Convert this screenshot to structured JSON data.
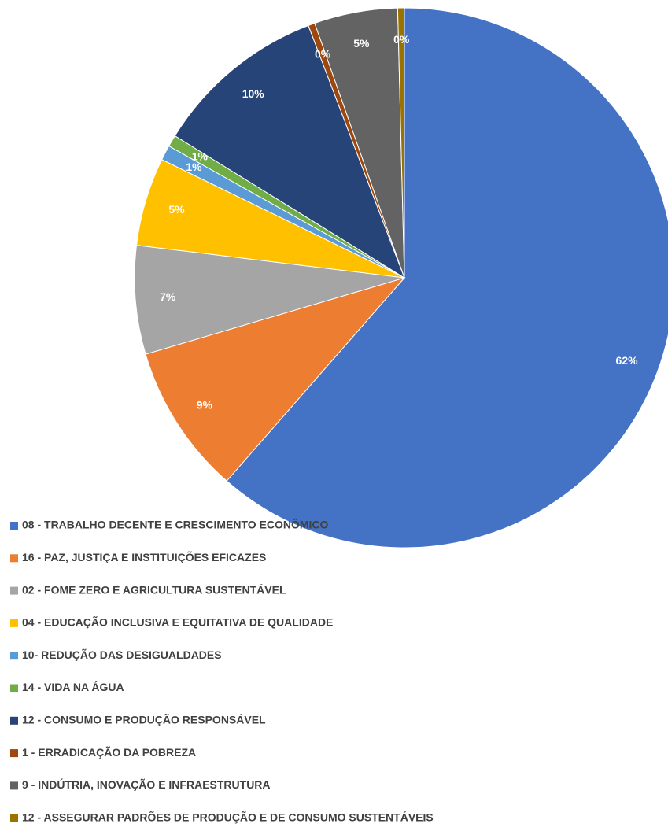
{
  "chart_data": {
    "type": "pie",
    "categories": [
      "08 - TRABALHO DECENTE E CRESCIMENTO ECONÔMICO",
      "16 - PAZ, JUSTIÇA E INSTITUIÇÕES EFICAZES",
      "02 - FOME ZERO E AGRICULTURA SUSTENTÁVEL",
      "04 - EDUCAÇÃO INCLUSIVA E EQUITATIVA DE QUALIDADE",
      "10- REDUÇÃO DAS DESIGUALDADES",
      "14 - VIDA NA ÁGUA",
      "12 - CONSUMO E PRODUÇÃO RESPONSÁVEL",
      "1 - ERRADICAÇÃO DA POBREZA",
      "9 - INDÚTRIA, INOVAÇÃO E INFRAESTRUTURA",
      "12 - ASSEGURAR PADRÕES DE PRODUÇÃO E DE CONSUMO SUSTENTÁVEIS"
    ],
    "values": [
      61.5,
      9,
      6.5,
      5.3,
      0.9,
      0.7,
      10.4,
      0.4,
      5,
      0.4
    ],
    "value_labels": [
      "62%",
      "9%",
      "7%",
      "5%",
      "1%",
      "1%",
      "10%",
      "0%",
      "5%",
      "0%"
    ],
    "colors": [
      "#4472c4",
      "#ed7d31",
      "#a5a5a5",
      "#ffc000",
      "#5b9bd5",
      "#70ad47",
      "#264478",
      "#9e480e",
      "#636363",
      "#997300"
    ],
    "legend": "bottom"
  }
}
